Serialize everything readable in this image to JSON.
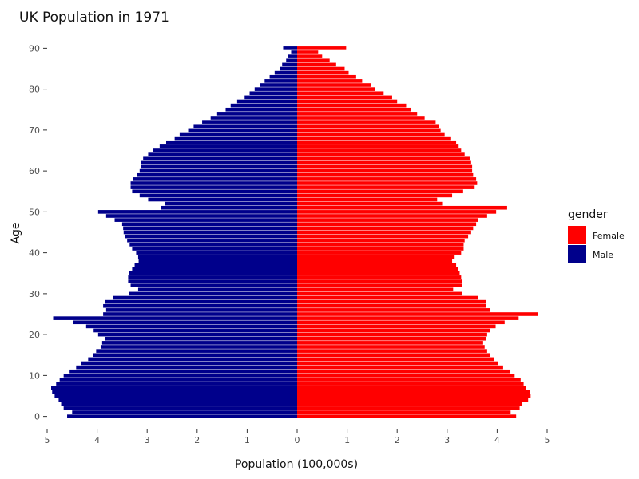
{
  "chart_data": {
    "type": "bar",
    "orientation": "horizontal",
    "title": "UK Population in 1971",
    "xlabel": "Population (100,000s)",
    "ylabel": "Age",
    "xlim": [
      -5,
      5
    ],
    "ylim": [
      -3,
      93
    ],
    "x_ticks": [
      {
        "value": -5,
        "label": "5"
      },
      {
        "value": -4,
        "label": "4"
      },
      {
        "value": -3,
        "label": "3"
      },
      {
        "value": -2,
        "label": "2"
      },
      {
        "value": -1,
        "label": "1"
      },
      {
        "value": 0,
        "label": "0"
      },
      {
        "value": 1,
        "label": "1"
      },
      {
        "value": 2,
        "label": "2"
      },
      {
        "value": 3,
        "label": "3"
      },
      {
        "value": 4,
        "label": "4"
      },
      {
        "value": 5,
        "label": "5"
      }
    ],
    "y_ticks": [
      0,
      10,
      20,
      30,
      40,
      50,
      60,
      70,
      80,
      90
    ],
    "grid": false,
    "legend": {
      "title": "gender",
      "position": "right",
      "entries": [
        {
          "label": "Female",
          "color": "#ff0000"
        },
        {
          "label": "Male",
          "color": "#00008b"
        }
      ]
    },
    "ages": [
      0,
      1,
      2,
      3,
      4,
      5,
      6,
      7,
      8,
      9,
      10,
      11,
      12,
      13,
      14,
      15,
      16,
      17,
      18,
      19,
      20,
      21,
      22,
      23,
      24,
      25,
      26,
      27,
      28,
      29,
      30,
      31,
      32,
      33,
      34,
      35,
      36,
      37,
      38,
      39,
      40,
      41,
      42,
      43,
      44,
      45,
      46,
      47,
      48,
      49,
      50,
      51,
      52,
      53,
      54,
      55,
      56,
      57,
      58,
      59,
      60,
      61,
      62,
      63,
      64,
      65,
      66,
      67,
      68,
      69,
      70,
      71,
      72,
      73,
      74,
      75,
      76,
      77,
      78,
      79,
      80,
      81,
      82,
      83,
      84,
      85,
      86,
      87,
      88,
      89,
      90
    ],
    "series": [
      {
        "name": "Female",
        "color": "#ff0000",
        "values": [
          4.38,
          4.27,
          4.45,
          4.5,
          4.62,
          4.67,
          4.65,
          4.58,
          4.53,
          4.47,
          4.35,
          4.25,
          4.12,
          4.02,
          3.93,
          3.85,
          3.8,
          3.75,
          3.72,
          3.78,
          3.8,
          3.85,
          3.97,
          4.15,
          4.43,
          4.82,
          3.85,
          3.77,
          3.77,
          3.62,
          3.3,
          3.12,
          3.3,
          3.3,
          3.28,
          3.25,
          3.22,
          3.18,
          3.1,
          3.15,
          3.28,
          3.33,
          3.33,
          3.35,
          3.42,
          3.48,
          3.52,
          3.58,
          3.62,
          3.8,
          3.98,
          4.2,
          2.9,
          2.8,
          3.1,
          3.32,
          3.55,
          3.6,
          3.58,
          3.52,
          3.5,
          3.5,
          3.48,
          3.45,
          3.35,
          3.28,
          3.23,
          3.18,
          3.08,
          2.95,
          2.87,
          2.83,
          2.77,
          2.55,
          2.4,
          2.28,
          2.18,
          2.0,
          1.9,
          1.73,
          1.55,
          1.47,
          1.3,
          1.18,
          1.03,
          0.95,
          0.78,
          0.65,
          0.5,
          0.42,
          0.98
        ]
      },
      {
        "name": "Male",
        "color": "#00008b",
        "values": [
          4.6,
          4.5,
          4.67,
          4.72,
          4.77,
          4.85,
          4.9,
          4.92,
          4.82,
          4.75,
          4.67,
          4.55,
          4.42,
          4.32,
          4.18,
          4.08,
          4.02,
          3.93,
          3.9,
          3.85,
          3.98,
          4.07,
          4.22,
          4.48,
          4.88,
          3.88,
          3.82,
          3.88,
          3.85,
          3.68,
          3.37,
          3.18,
          3.33,
          3.38,
          3.38,
          3.37,
          3.3,
          3.25,
          3.17,
          3.18,
          3.22,
          3.3,
          3.35,
          3.4,
          3.45,
          3.47,
          3.48,
          3.5,
          3.65,
          3.82,
          3.98,
          2.72,
          2.65,
          2.98,
          3.15,
          3.3,
          3.33,
          3.33,
          3.28,
          3.2,
          3.15,
          3.12,
          3.12,
          3.08,
          2.98,
          2.88,
          2.75,
          2.62,
          2.45,
          2.35,
          2.18,
          2.07,
          1.9,
          1.73,
          1.6,
          1.43,
          1.33,
          1.2,
          1.05,
          0.95,
          0.85,
          0.75,
          0.65,
          0.55,
          0.45,
          0.35,
          0.3,
          0.22,
          0.18,
          0.12,
          0.28
        ]
      }
    ]
  }
}
